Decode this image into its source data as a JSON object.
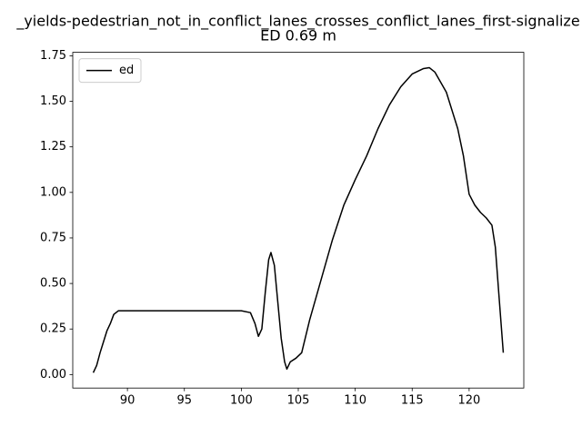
{
  "chart_data": {
    "type": "line",
    "title": "_yields-pedestrian_not_in_conflict_lanes_crosses_conflict_lanes_first-signalize",
    "subtitle": "ED 0.69 m",
    "x": [
      87.0,
      87.3,
      87.6,
      87.9,
      88.2,
      88.5,
      88.8,
      89.2,
      90,
      91,
      92,
      93,
      94,
      95,
      96,
      97,
      98,
      99,
      100,
      100.8,
      101.2,
      101.5,
      101.8,
      102.1,
      102.4,
      102.6,
      102.9,
      103.2,
      103.5,
      103.8,
      104.0,
      104.3,
      104.8,
      105.3,
      106,
      107,
      108,
      109,
      110,
      111,
      112,
      113,
      114,
      115,
      116,
      116.5,
      117,
      118,
      119,
      119.5,
      120,
      120.5,
      121,
      121.5,
      122,
      122.3,
      122.6,
      123
    ],
    "series": [
      {
        "name": "ed",
        "color": "#000000",
        "values": [
          0.01,
          0.05,
          0.12,
          0.18,
          0.24,
          0.28,
          0.33,
          0.35,
          0.35,
          0.35,
          0.35,
          0.35,
          0.35,
          0.35,
          0.35,
          0.35,
          0.35,
          0.35,
          0.35,
          0.34,
          0.28,
          0.21,
          0.25,
          0.45,
          0.63,
          0.67,
          0.6,
          0.4,
          0.2,
          0.07,
          0.03,
          0.07,
          0.09,
          0.12,
          0.3,
          0.52,
          0.74,
          0.93,
          1.07,
          1.2,
          1.35,
          1.48,
          1.58,
          1.65,
          1.68,
          1.685,
          1.66,
          1.55,
          1.35,
          1.2,
          0.99,
          0.93,
          0.89,
          0.86,
          0.82,
          0.7,
          0.45,
          0.12
        ]
      }
    ],
    "xlim": [
      85.2,
      124.8
    ],
    "xticks": [
      90,
      95,
      100,
      105,
      110,
      115,
      120
    ],
    "ylim": [
      -0.074,
      1.769
    ],
    "yticks": [
      {
        "value": 0,
        "label": "0.00"
      },
      {
        "value": 0.25,
        "label": "0.25"
      },
      {
        "value": 0.5,
        "label": "0.50"
      },
      {
        "value": 0.75,
        "label": "0.75"
      },
      {
        "value": 1,
        "label": "1.00"
      },
      {
        "value": 1.25,
        "label": "1.25"
      },
      {
        "value": 1.5,
        "label": "1.50"
      },
      {
        "value": 1.75,
        "label": "1.75"
      }
    ],
    "legend": "upper left",
    "grid": false
  }
}
